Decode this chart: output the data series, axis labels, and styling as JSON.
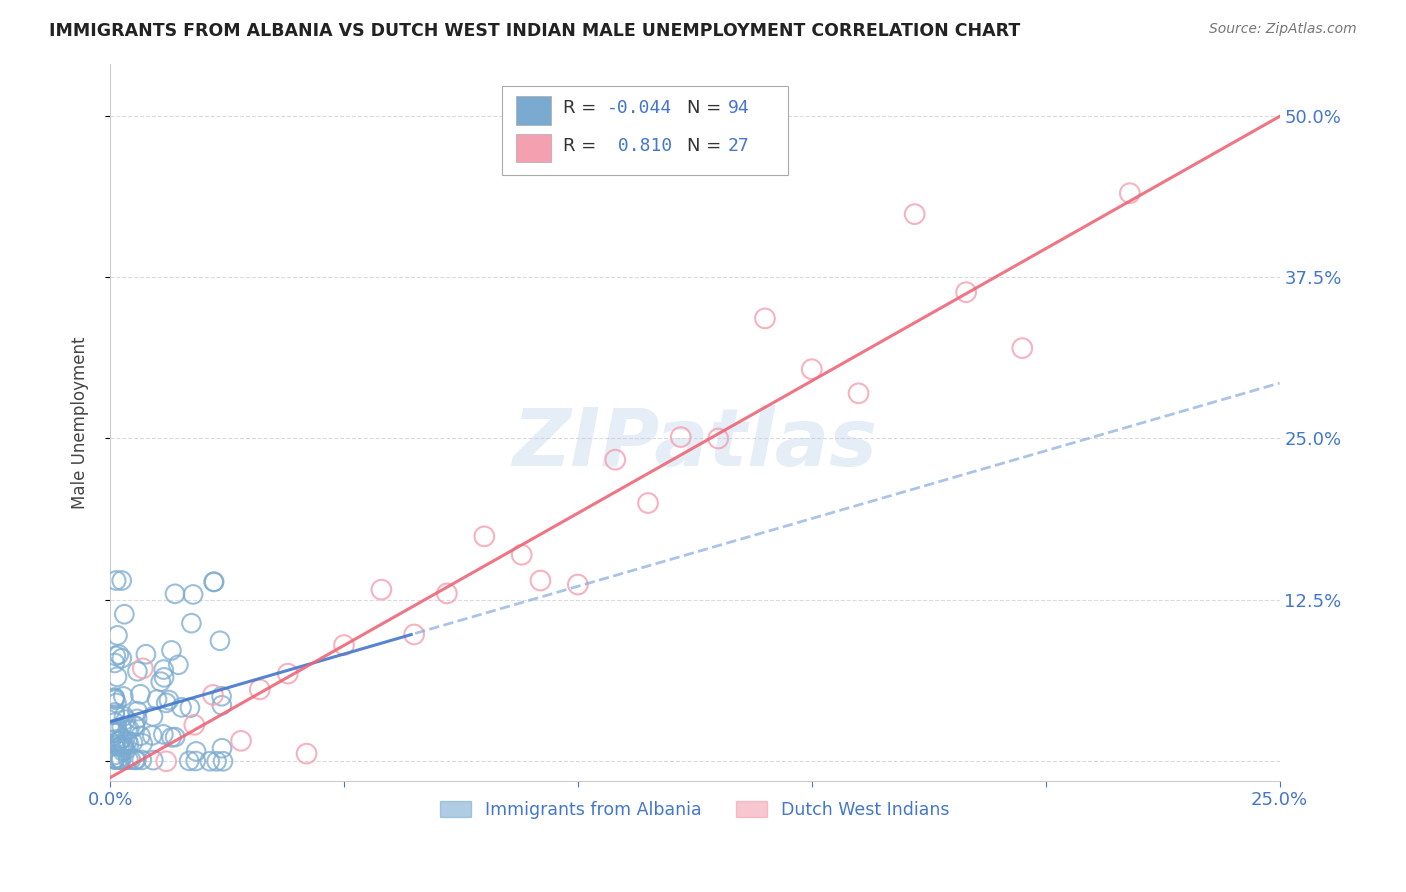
{
  "title": "IMMIGRANTS FROM ALBANIA VS DUTCH WEST INDIAN MALE UNEMPLOYMENT CORRELATION CHART",
  "source": "Source: ZipAtlas.com",
  "ylabel": "Male Unemployment",
  "xlim": [
    0.0,
    0.25
  ],
  "ylim": [
    -0.015,
    0.54
  ],
  "xticks": [
    0.0,
    0.05,
    0.1,
    0.15,
    0.2,
    0.25
  ],
  "xticklabels": [
    "0.0%",
    "",
    "",
    "",
    "",
    "25.0%"
  ],
  "yticks": [
    0.0,
    0.125,
    0.25,
    0.375,
    0.5
  ],
  "yticklabels_right": [
    "",
    "12.5%",
    "25.0%",
    "37.5%",
    "50.0%"
  ],
  "albania_color": "#7AAAD0",
  "dwi_color": "#F4A0B0",
  "albania_R": -0.044,
  "albania_N": 94,
  "dwi_R": 0.81,
  "dwi_N": 27,
  "watermark": "ZIPatlas",
  "albania_line_color": "#4477CC",
  "albania_line_dash_color": "#88AADD",
  "dwi_line_color": "#EE6677",
  "grid_color": "#CCCCCC",
  "tick_color": "#4477CC",
  "legend_text_color": "#333333",
  "legend_val_color": "#4477CC",
  "legend_neg_color": "#EE4466",
  "background_color": "#FFFFFF"
}
